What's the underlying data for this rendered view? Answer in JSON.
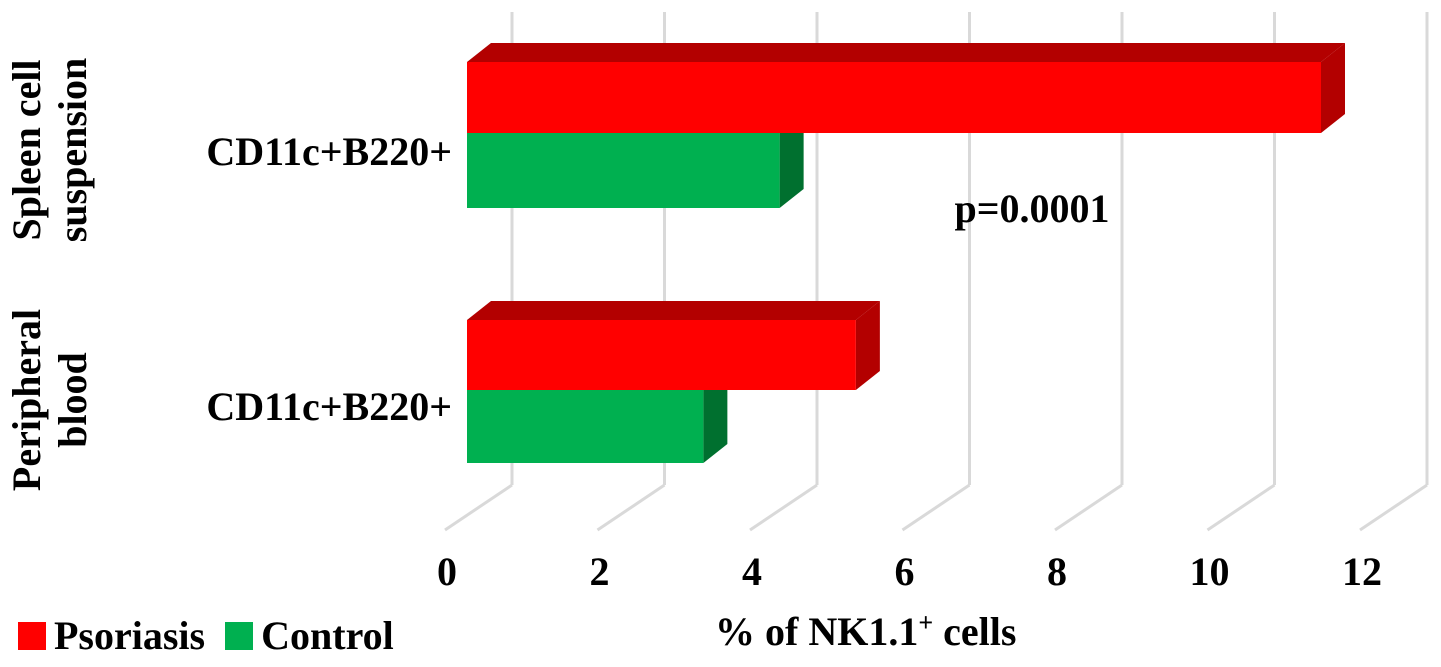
{
  "chart_data": {
    "type": "bar",
    "orientation": "horizontal",
    "three_d": true,
    "groups": [
      {
        "group": "Spleen cell suspension",
        "group_lines": [
          "Spleen cell",
          "suspension"
        ],
        "category": "CD11c+B220+"
      },
      {
        "group": "Peripheral blood",
        "group_lines": [
          "Peripheral",
          "blood"
        ],
        "category": "CD11c+B220+"
      }
    ],
    "series": [
      {
        "name": "Psoriasis",
        "color": "#ff0000",
        "side_color": "#b30000",
        "values": [
          11.2,
          5.1
        ]
      },
      {
        "name": "Control",
        "color": "#00b050",
        "side_color": "#00702f",
        "values": [
          4.1,
          3.1
        ]
      }
    ],
    "xlim": [
      0,
      12
    ],
    "xticks": [
      "0",
      "2",
      "4",
      "6",
      "8",
      "10",
      "12"
    ],
    "xlabel_main": "% of NK1.1",
    "xlabel_sup": "+",
    "xlabel_tail": " cells",
    "annotation": "p=0.0001",
    "grid": true,
    "legend_position": "bottom-left"
  }
}
